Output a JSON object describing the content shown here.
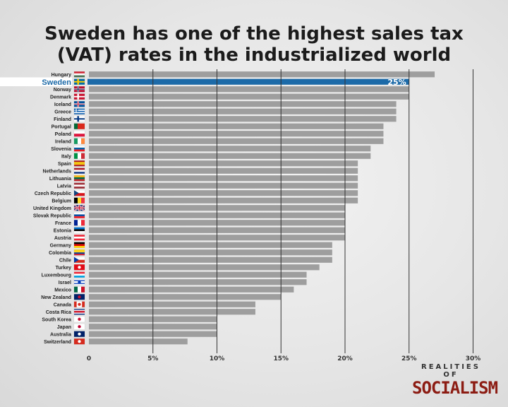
{
  "title_line1": "Sweden has one of the highest sales tax",
  "title_line2": "(VAT) rates in the industrialized world",
  "brand": {
    "top": "REALITIES OF",
    "main": "SOCIALISM"
  },
  "colors": {
    "bar": "#9e9e9e",
    "highlight": "#1c6aa8",
    "grid": "#333333",
    "brand": "#8c1c13"
  },
  "chart_data": {
    "type": "bar",
    "orientation": "horizontal",
    "title": "Sweden has one of the highest sales tax (VAT) rates in the industrialized world",
    "xlabel": "",
    "ylabel": "",
    "xlim": [
      0,
      30
    ],
    "x_ticks": [
      "0",
      "5%",
      "10%",
      "15%",
      "20%",
      "25%",
      "30%"
    ],
    "highlight": "Sweden",
    "highlight_label": "25%",
    "categories": [
      "Hungary",
      "Sweden",
      "Norway",
      "Denmark",
      "Iceland",
      "Greece",
      "Finland",
      "Portugal",
      "Poland",
      "Ireland",
      "Slovenia",
      "Italy",
      "Spain",
      "Netherlands",
      "Lithuania",
      "Latvia",
      "Czech Republic",
      "Belgium",
      "United Kingdom",
      "Slovak Republic",
      "France",
      "Estonia",
      "Austria",
      "Germany",
      "Colombia",
      "Chile",
      "Turkey",
      "Luxembourg",
      "Israel",
      "Mexico",
      "New Zealand",
      "Canada",
      "Costa Rica",
      "South Korea",
      "Japan",
      "Australia",
      "Switzerland"
    ],
    "values": [
      27,
      25,
      25,
      25,
      24,
      24,
      24,
      23,
      23,
      23,
      22,
      22,
      21,
      21,
      21,
      21,
      21,
      21,
      20,
      20,
      20,
      20,
      20,
      19,
      19,
      19,
      18,
      17,
      17,
      16,
      15,
      13,
      13,
      10,
      10,
      10,
      7.7
    ],
    "grid": true
  },
  "flags": [
    {
      "type": "h",
      "colors": [
        "#ce2939",
        "#ffffff",
        "#477050"
      ]
    },
    {
      "type": "nordic",
      "bg": "#006aa7",
      "cross": "#fecc00"
    },
    {
      "type": "nordic",
      "bg": "#ba0c2f",
      "cross": "#ffffff",
      "inner": "#00205b"
    },
    {
      "type": "nordic",
      "bg": "#c8102e",
      "cross": "#ffffff"
    },
    {
      "type": "nordic",
      "bg": "#02529c",
      "cross": "#ffffff",
      "inner": "#dc1e35"
    },
    {
      "type": "stripes",
      "colors": [
        "#0d5eaf",
        "#ffffff"
      ]
    },
    {
      "type": "nordic",
      "bg": "#ffffff",
      "cross": "#003580"
    },
    {
      "type": "v",
      "colors": [
        "#046a38",
        "#da291c",
        "#da291c"
      ]
    },
    {
      "type": "h",
      "colors": [
        "#ffffff",
        "#dc143c"
      ]
    },
    {
      "type": "v",
      "colors": [
        "#169b62",
        "#ffffff",
        "#ff883e"
      ]
    },
    {
      "type": "h",
      "colors": [
        "#ffffff",
        "#005da4",
        "#ed1c24"
      ]
    },
    {
      "type": "v",
      "colors": [
        "#009246",
        "#ffffff",
        "#ce2b37"
      ]
    },
    {
      "type": "h",
      "colors": [
        "#aa151b",
        "#f1bf00",
        "#f1bf00",
        "#aa151b"
      ]
    },
    {
      "type": "h",
      "colors": [
        "#ae1c28",
        "#ffffff",
        "#21468b"
      ]
    },
    {
      "type": "h",
      "colors": [
        "#fdb913",
        "#006a44",
        "#c1272d"
      ]
    },
    {
      "type": "h",
      "colors": [
        "#9e3039",
        "#ffffff",
        "#9e3039"
      ]
    },
    {
      "type": "h",
      "colors": [
        "#ffffff",
        "#d7141a"
      ],
      "tri": "#11457e"
    },
    {
      "type": "v",
      "colors": [
        "#000000",
        "#fdda24",
        "#ef3340"
      ]
    },
    {
      "type": "uk"
    },
    {
      "type": "h",
      "colors": [
        "#ffffff",
        "#0b4ea2",
        "#ee1c25"
      ]
    },
    {
      "type": "v",
      "colors": [
        "#002395",
        "#ffffff",
        "#ed2939"
      ]
    },
    {
      "type": "h",
      "colors": [
        "#0072ce",
        "#000000",
        "#ffffff"
      ]
    },
    {
      "type": "h",
      "colors": [
        "#ed2939",
        "#ffffff",
        "#ed2939"
      ]
    },
    {
      "type": "h",
      "colors": [
        "#000000",
        "#dd0000",
        "#ffce00"
      ]
    },
    {
      "type": "h",
      "colors": [
        "#fcd116",
        "#fcd116",
        "#003893",
        "#ce1126"
      ]
    },
    {
      "type": "h",
      "colors": [
        "#ffffff",
        "#d52b1e"
      ],
      "tri": "#0039a6"
    },
    {
      "type": "solid",
      "colors": [
        "#e30a17"
      ],
      "dot": "#ffffff"
    },
    {
      "type": "h",
      "colors": [
        "#ed2939",
        "#ffffff",
        "#00a1de"
      ]
    },
    {
      "type": "h",
      "colors": [
        "#ffffff",
        "#0038b8",
        "#ffffff",
        "#ffffff",
        "#0038b8",
        "#ffffff"
      ],
      "dot": "#0038b8"
    },
    {
      "type": "v",
      "colors": [
        "#006847",
        "#ffffff",
        "#ce1126"
      ]
    },
    {
      "type": "solid",
      "colors": [
        "#012169"
      ],
      "dot": "#c8102e"
    },
    {
      "type": "v",
      "colors": [
        "#d52b1e",
        "#ffffff",
        "#ffffff",
        "#d52b1e"
      ],
      "dot": "#d52b1e"
    },
    {
      "type": "h",
      "colors": [
        "#002b7f",
        "#ffffff",
        "#ce1126",
        "#ce1126",
        "#ffffff",
        "#002b7f"
      ]
    },
    {
      "type": "solid",
      "colors": [
        "#ffffff"
      ],
      "dot": "#c60c30"
    },
    {
      "type": "solid",
      "colors": [
        "#ffffff"
      ],
      "dot": "#bc002d"
    },
    {
      "type": "solid",
      "colors": [
        "#012169"
      ],
      "dot": "#ffffff"
    },
    {
      "type": "solid",
      "colors": [
        "#d52b1e"
      ],
      "dot": "#ffffff"
    }
  ]
}
